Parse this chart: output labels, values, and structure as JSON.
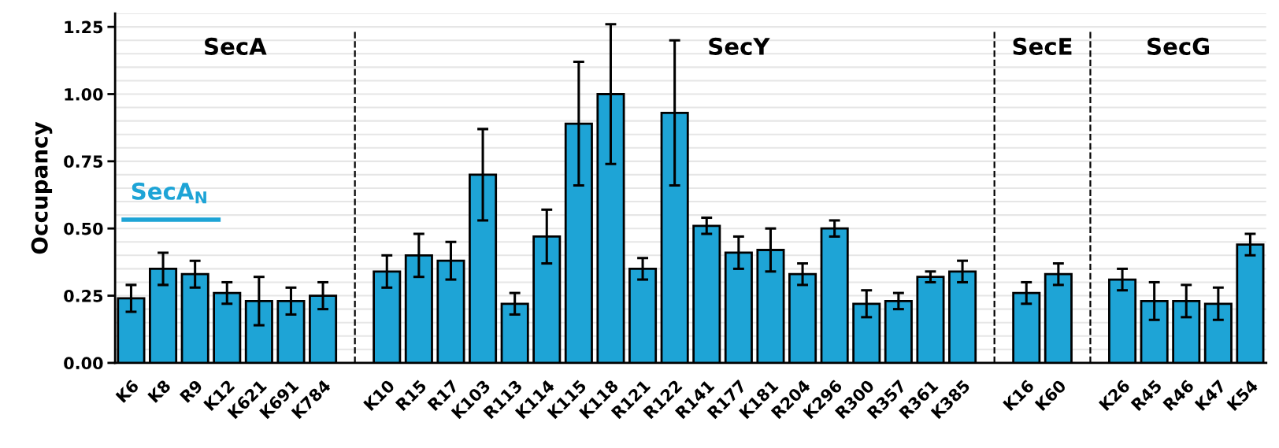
{
  "chart_data": {
    "type": "bar",
    "ylabel": "Occupancy",
    "categories": [
      "K6",
      "K8",
      "R9",
      "K12",
      "K621",
      "K691",
      "K784",
      null,
      "K10",
      "R15",
      "R17",
      "K103",
      "R113",
      "K114",
      "K115",
      "K118",
      "R121",
      "R122",
      "R141",
      "R177",
      "K181",
      "R204",
      "K296",
      "R300",
      "R357",
      "R361",
      "K385",
      null,
      "K16",
      "K60",
      null,
      "K26",
      "R45",
      "R46",
      "K47",
      "K54"
    ],
    "values": [
      0.24,
      0.35,
      0.33,
      0.26,
      0.23,
      0.23,
      0.25,
      null,
      0.34,
      0.4,
      0.38,
      0.7,
      0.22,
      0.47,
      0.89,
      1.0,
      0.35,
      0.93,
      0.51,
      0.41,
      0.42,
      0.33,
      0.5,
      0.22,
      0.23,
      0.32,
      0.34,
      null,
      0.26,
      0.33,
      null,
      0.31,
      0.23,
      0.23,
      0.22,
      0.44
    ],
    "errors": [
      0.05,
      0.06,
      0.05,
      0.04,
      0.09,
      0.05,
      0.05,
      null,
      0.06,
      0.08,
      0.07,
      0.17,
      0.04,
      0.1,
      0.23,
      0.26,
      0.04,
      0.27,
      0.03,
      0.06,
      0.08,
      0.04,
      0.03,
      0.05,
      0.03,
      0.02,
      0.04,
      null,
      0.04,
      0.04,
      null,
      0.04,
      0.07,
      0.06,
      0.06,
      0.04
    ],
    "color": "#1ea4d6",
    "ylim": [
      0,
      1.3
    ],
    "yticks": [
      {
        "value": 0,
        "label": "0.00"
      },
      {
        "value": 0.05,
        "label": null
      },
      {
        "value": 0.1,
        "label": null
      },
      {
        "value": 0.15,
        "label": null
      },
      {
        "value": 0.2,
        "label": null
      },
      {
        "value": 0.25,
        "label": "0.25"
      },
      {
        "value": 0.3,
        "label": null
      },
      {
        "value": 0.35,
        "label": null
      },
      {
        "value": 0.4,
        "label": null
      },
      {
        "value": 0.45,
        "label": null
      },
      {
        "value": 0.5,
        "label": "0.50"
      },
      {
        "value": 0.55,
        "label": null
      },
      {
        "value": 0.6,
        "label": null
      },
      {
        "value": 0.65,
        "label": null
      },
      {
        "value": 0.7,
        "label": null
      },
      {
        "value": 0.75,
        "label": "0.75"
      },
      {
        "value": 0.8,
        "label": null
      },
      {
        "value": 0.85,
        "label": null
      },
      {
        "value": 0.9,
        "label": null
      },
      {
        "value": 0.95,
        "label": null
      },
      {
        "value": 1.0,
        "label": "1.00"
      },
      {
        "value": 1.05,
        "label": null
      },
      {
        "value": 1.1,
        "label": null
      },
      {
        "value": 1.15,
        "label": null
      },
      {
        "value": 1.2,
        "label": null
      },
      {
        "value": 1.25,
        "label": "1.25"
      },
      {
        "value": 1.3,
        "label": null
      }
    ],
    "grid": "y",
    "annotations": [
      "SecA",
      "SecY",
      "SecE",
      "SecG",
      "SecA$_{N}$"
    ]
  }
}
